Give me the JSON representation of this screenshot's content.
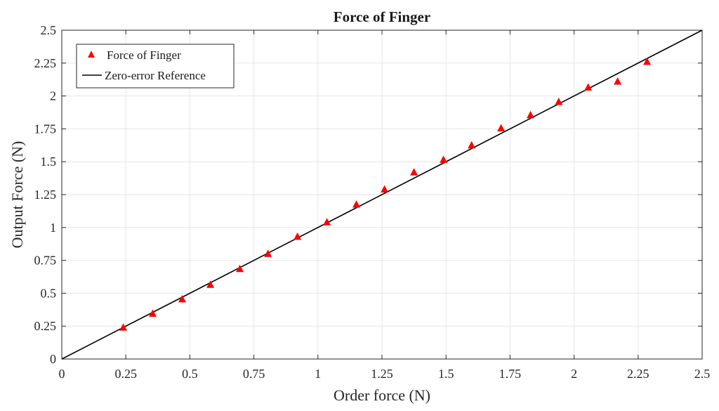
{
  "chart_data": {
    "type": "scatter",
    "title": "Force of Finger",
    "xlabel": "Order force (N)",
    "ylabel": "Output Force (N)",
    "xlim": [
      0,
      2.5
    ],
    "ylim": [
      0,
      2.5
    ],
    "xticks": [
      "0",
      "0.25",
      "0.5",
      "0.75",
      "1",
      "1.25",
      "1.5",
      "1.75",
      "2",
      "2.25",
      "2.5"
    ],
    "yticks": [
      "0",
      "0.25",
      "0.5",
      "0.75",
      "1",
      "1.25",
      "1.5",
      "1.75",
      "2",
      "2.25",
      "2.5"
    ],
    "grid": true,
    "legend_position": "top-left",
    "series": [
      {
        "name": "Force of Finger",
        "marker": "triangle",
        "color": "#ff0000",
        "x": [
          0.24,
          0.355,
          0.47,
          0.58,
          0.695,
          0.805,
          0.92,
          1.035,
          1.15,
          1.26,
          1.375,
          1.49,
          1.6,
          1.715,
          1.83,
          1.94,
          2.055,
          2.17,
          2.285
        ],
        "y": [
          0.24,
          0.345,
          0.455,
          0.565,
          0.685,
          0.8,
          0.93,
          1.04,
          1.175,
          1.29,
          1.42,
          1.515,
          1.625,
          1.755,
          1.855,
          1.955,
          2.065,
          2.11,
          2.26
        ]
      },
      {
        "name": "Zero-error Reference",
        "line": true,
        "color": "#000000",
        "x": [
          0,
          2.5
        ],
        "y": [
          0,
          2.5
        ]
      }
    ]
  }
}
